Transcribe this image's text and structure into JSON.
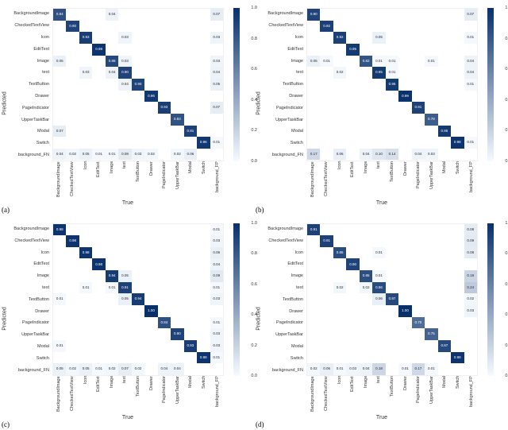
{
  "colorbar": {
    "ticks": [
      0.0,
      0.2,
      0.4,
      0.6,
      0.8,
      1.0
    ],
    "color_low": "#f7fbff",
    "color_high": "#08306b"
  },
  "axis": {
    "xlabel": "True",
    "ylabel": "Predicted"
  },
  "y_labels": [
    "BackgroundImage",
    "CheckedTextView",
    "Icon",
    "EditText",
    "Image",
    "text",
    "TextButton",
    "Drawer",
    "PageIndicator",
    "UpperTaskBar",
    "Modal",
    "Switch",
    "background_FN"
  ],
  "x_labels": [
    "BackgroundImage",
    "CheckedTextView",
    "Icon",
    "EditText",
    "Image",
    "text",
    "TextButton",
    "Drawer",
    "PageIndicator",
    "UpperTaskBar",
    "Modal",
    "Switch",
    "background_FP"
  ],
  "panels": [
    {
      "label": "(a)",
      "matrix": [
        [
          0.84,
          0,
          0,
          0,
          0.04,
          0,
          0,
          0,
          0,
          0,
          0,
          0,
          0.07
        ],
        [
          0,
          0.9,
          0,
          0,
          0,
          0,
          0,
          0,
          0,
          0,
          0,
          0,
          0
        ],
        [
          0,
          0,
          0.93,
          0,
          0,
          0.03,
          0,
          0,
          0,
          0,
          0,
          0,
          0.03
        ],
        [
          0,
          0,
          0,
          0.98,
          0,
          0,
          0,
          0,
          0,
          0,
          0,
          0,
          0
        ],
        [
          0.05,
          0,
          0,
          0,
          0.88,
          0.03,
          0,
          0,
          0,
          0,
          0,
          0,
          0.03
        ],
        [
          0,
          0,
          0.03,
          0,
          0.04,
          0.9,
          0,
          0,
          0,
          0,
          0,
          0,
          0.04
        ],
        [
          0,
          0,
          0,
          0,
          0,
          0.04,
          0.9,
          0,
          0,
          0,
          0,
          0,
          0.05
        ],
        [
          0,
          0,
          0,
          0,
          0,
          0,
          0,
          0.96,
          0,
          0,
          0,
          0,
          0
        ],
        [
          0,
          0,
          0,
          0,
          0,
          0,
          0,
          0,
          0.93,
          0,
          0,
          0,
          0.07
        ],
        [
          0,
          0,
          0,
          0,
          0,
          0,
          0,
          0,
          0,
          0.83,
          0,
          0,
          0
        ],
        [
          0.07,
          0,
          0,
          0,
          0,
          0,
          0,
          0,
          0,
          0,
          0.91,
          0,
          0
        ],
        [
          0,
          0,
          0,
          0,
          0,
          0,
          0,
          0,
          0,
          0,
          0,
          0.96,
          0.01
        ],
        [
          0.04,
          0.02,
          0.05,
          0.01,
          0.01,
          0.08,
          0.03,
          0.02,
          0,
          0.02,
          0.06,
          0,
          0
        ]
      ]
    },
    {
      "label": "(b)",
      "matrix": [
        [
          0.9,
          0,
          0,
          0,
          0,
          0,
          0,
          0,
          0,
          0,
          0,
          0,
          0.07
        ],
        [
          0,
          0.92,
          0,
          0,
          0,
          0,
          0,
          0,
          0,
          0,
          0,
          0,
          0
        ],
        [
          0,
          0,
          0.92,
          0,
          0,
          0.05,
          0,
          0,
          0,
          0,
          0,
          0,
          0.01
        ],
        [
          0,
          0,
          0,
          0.95,
          0,
          0,
          0,
          0,
          0,
          0,
          0,
          0,
          0
        ],
        [
          0.05,
          0.01,
          0,
          0,
          0.82,
          0.01,
          0.01,
          0,
          0,
          0.01,
          0,
          0,
          0.04
        ],
        [
          0,
          0,
          0.02,
          0,
          0,
          0.95,
          0.01,
          0,
          0,
          0,
          0,
          0,
          0.04
        ],
        [
          0,
          0,
          0,
          0,
          0,
          0,
          0.95,
          0,
          0,
          0,
          0,
          0,
          0.01
        ],
        [
          0,
          0,
          0,
          0,
          0,
          0,
          0,
          0.99,
          0,
          0,
          0,
          0,
          0
        ],
        [
          0,
          0,
          0,
          0,
          0,
          0,
          0,
          0,
          0.91,
          0,
          0,
          0,
          0
        ],
        [
          0,
          0,
          0,
          0,
          0,
          0,
          0,
          0,
          0,
          0.78,
          0,
          0,
          0
        ],
        [
          0,
          0,
          0,
          0,
          0,
          0,
          0,
          0,
          0,
          0,
          0.95,
          0,
          0
        ],
        [
          0,
          0,
          0,
          0,
          0,
          0,
          0,
          0,
          0,
          0,
          0,
          0.98,
          0.01
        ],
        [
          0.17,
          0,
          0.06,
          0,
          0.04,
          0.1,
          0.14,
          0,
          0.04,
          0.03,
          0,
          0,
          0
        ]
      ]
    },
    {
      "label": "(c)",
      "matrix": [
        [
          0.98,
          0,
          0,
          0,
          0,
          0,
          0,
          0,
          0,
          0,
          0,
          0,
          0.01
        ],
        [
          0,
          0.98,
          0,
          0,
          0,
          0,
          0,
          0,
          0,
          0,
          0,
          0,
          0.03
        ],
        [
          0,
          0,
          0.98,
          0,
          0,
          0,
          0,
          0,
          0,
          0,
          0,
          0,
          0.06
        ],
        [
          0,
          0,
          0,
          0.98,
          0,
          0,
          0,
          0,
          0,
          0,
          0,
          0,
          0.04
        ],
        [
          0,
          0,
          0,
          0,
          0.94,
          0.05,
          0,
          0,
          0,
          0,
          0,
          0,
          0.09
        ],
        [
          0,
          0,
          0.01,
          0,
          0.01,
          0.91,
          0,
          0,
          0,
          0,
          0,
          0,
          0.01
        ],
        [
          0.01,
          0,
          0,
          0,
          0,
          0.05,
          0.94,
          0,
          0,
          0,
          0,
          0,
          0.03
        ],
        [
          0,
          0,
          0,
          0,
          0,
          0,
          0,
          1.0,
          0,
          0,
          0,
          0,
          0
        ],
        [
          0,
          0,
          0,
          0,
          0,
          0,
          0,
          0,
          0.84,
          0,
          0,
          0,
          0.01
        ],
        [
          0,
          0,
          0,
          0,
          0,
          0,
          0,
          0,
          0,
          0.9,
          0,
          0,
          0.03
        ],
        [
          0.01,
          0,
          0,
          0,
          0,
          0,
          0,
          0,
          0,
          0,
          0.93,
          0,
          0.03
        ],
        [
          0,
          0,
          0,
          0,
          0,
          0,
          0,
          0,
          0,
          0,
          0,
          0.98,
          0.01
        ],
        [
          0.05,
          0.02,
          0.05,
          0.01,
          0.02,
          0.07,
          0.02,
          0,
          0.04,
          0.04,
          0,
          0,
          0
        ]
      ]
    },
    {
      "label": "(d)",
      "matrix": [
        [
          0.91,
          0,
          0,
          0,
          0,
          0,
          0,
          0,
          0,
          0,
          0,
          0,
          0.08
        ],
        [
          0,
          0.91,
          0,
          0,
          0,
          0,
          0,
          0,
          0,
          0,
          0,
          0,
          0.09
        ],
        [
          0,
          0,
          0.86,
          0,
          0,
          0.01,
          0,
          0,
          0,
          0,
          0,
          0,
          0.08
        ],
        [
          0,
          0,
          0,
          0.9,
          0,
          0,
          0,
          0,
          0,
          0,
          0,
          0,
          0
        ],
        [
          0,
          0,
          0,
          0,
          0.85,
          0.01,
          0,
          0,
          0,
          0,
          0,
          0,
          0.19
        ],
        [
          0,
          0,
          0.02,
          0,
          0.02,
          0.86,
          0,
          0,
          0,
          0,
          0,
          0,
          0.24
        ],
        [
          0,
          0,
          0,
          0,
          0,
          0.06,
          0.87,
          0,
          0,
          0,
          0,
          0,
          0.02
        ],
        [
          0,
          0,
          0,
          0,
          0,
          0,
          0,
          1.0,
          0,
          0,
          0,
          0,
          0.03
        ],
        [
          0,
          0,
          0,
          0,
          0,
          0,
          0,
          0,
          0.7,
          0,
          0,
          0,
          0
        ],
        [
          0,
          0,
          0,
          0,
          0,
          0,
          0,
          0,
          0,
          0.75,
          0,
          0,
          0
        ],
        [
          0,
          0,
          0,
          0,
          0,
          0,
          0,
          0,
          0,
          0,
          0.87,
          0,
          0
        ],
        [
          0,
          0,
          0,
          0,
          0,
          0,
          0,
          0,
          0,
          0,
          0,
          0.98,
          0
        ],
        [
          0.02,
          0.06,
          0.01,
          0.03,
          0.04,
          0.18,
          0,
          0.01,
          0.17,
          0.01,
          0,
          0,
          0
        ]
      ]
    }
  ]
}
